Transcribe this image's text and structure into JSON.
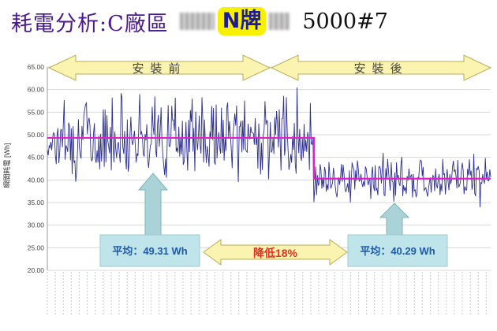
{
  "title": {
    "main": "耗電分析:C廠區",
    "brand": "N牌",
    "model": "5000#7"
  },
  "chart_data": {
    "type": "line",
    "ylabel": "瞬間耗電 [Wh]",
    "xlabel": "",
    "ylim": [
      20,
      65
    ],
    "yticks": [
      "20.00",
      "25.00",
      "30.00",
      "35.00",
      "40.00",
      "45.00",
      "50.00",
      "55.00",
      "60.00",
      "65.00"
    ],
    "grid": true,
    "n_points": 500,
    "step_index": 300,
    "series": [
      {
        "name": "",
        "color": "#2b2f91"
      },
      {
        "name": "",
        "color": "#e020c8"
      }
    ],
    "segments": [
      {
        "label": "安裝前",
        "average_value": 49.31,
        "average_label": "平均：49.31 Wh"
      },
      {
        "label": "安裝後",
        "average_value": 40.29,
        "average_label": "平均：40.29 Wh"
      }
    ],
    "reduction_label_prefix": "降低",
    "reduction_label_value": "18%",
    "colors": {
      "raw_line": "#2b2f91",
      "average_line": "#e020c8",
      "band_arrow_fill": "#fbf3b0",
      "band_arrow_stroke": "#b8ad55",
      "callout_fill": "#bfe5ea",
      "callout_arrow_fill": "#a9d3d6",
      "callout_text": "#1e5aa8",
      "reduction_text": "#e03020",
      "grid": "#d8d8d8"
    }
  }
}
